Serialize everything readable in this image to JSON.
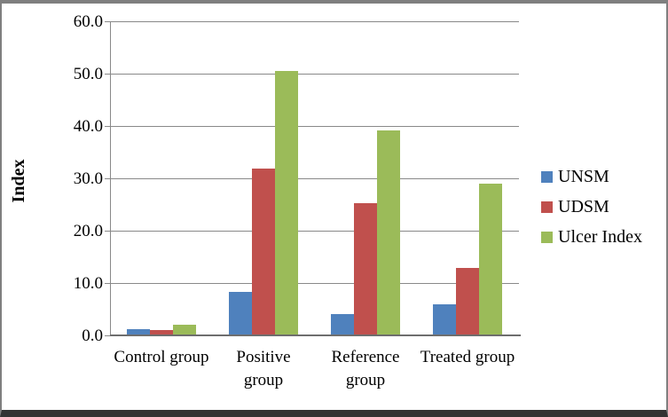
{
  "chart_data": {
    "type": "bar",
    "title": "",
    "xlabel": "",
    "ylabel": "Index",
    "categories": [
      "Control group",
      "Positive group",
      "Reference group",
      "Treated group"
    ],
    "series": [
      {
        "name": "UNSM",
        "color": "#4F81BD",
        "values": [
          1.2,
          8.3,
          4.0,
          6.0
        ]
      },
      {
        "name": "UDSM",
        "color": "#C0504D",
        "values": [
          1.1,
          31.8,
          25.2,
          12.9
        ]
      },
      {
        "name": "Ulcer Index",
        "color": "#9BBB59",
        "values": [
          2.1,
          50.5,
          39.2,
          29.0
        ]
      }
    ],
    "ylim": [
      0,
      60
    ],
    "ytick_step": 10,
    "yticks": [
      "0.0",
      "10.0",
      "20.0",
      "30.0",
      "40.0",
      "50.0",
      "60.0"
    ],
    "grid": "horizontal-only",
    "legend_position": "right-middle",
    "colors": {
      "gridline": "#898989",
      "axis_line": "#6e6e6e",
      "text": "#000000",
      "background": "#ffffff",
      "frame": "#7f7f7f"
    }
  }
}
